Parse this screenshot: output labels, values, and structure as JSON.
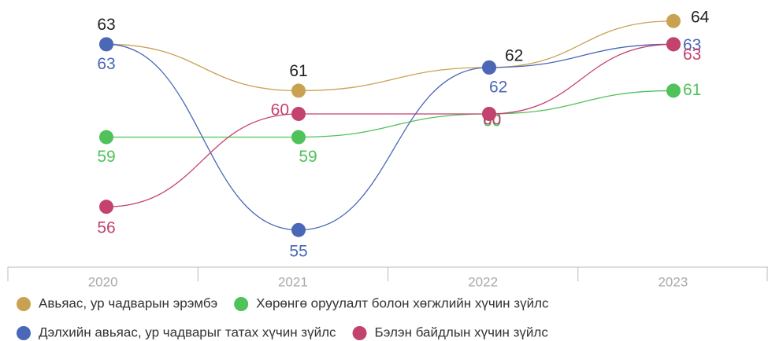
{
  "chart_data": {
    "type": "line",
    "categories": [
      "2020",
      "2021",
      "2022",
      "2023"
    ],
    "series": [
      {
        "name": "Авьяас, ур чадварын эрэмбэ",
        "color": "#c8a251",
        "values": [
          63,
          61,
          62,
          64
        ]
      },
      {
        "name": "Хөрөнгө оруулалт болон хөгжлийн хүчин зүйлс",
        "color": "#4fc25a",
        "values": [
          59,
          59,
          60,
          61
        ]
      },
      {
        "name": "Дэлхийн авьяас, ур чадварыг татах хүчин зүйлс",
        "color": "#4a67b8",
        "values": [
          63,
          55,
          62,
          63
        ]
      },
      {
        "name": "Бэлэн байдлын хүчин зүйлс",
        "color": "#c4426e",
        "values": [
          56,
          60,
          60,
          63
        ]
      }
    ],
    "ylim": [
      53.4,
      64.5
    ]
  }
}
